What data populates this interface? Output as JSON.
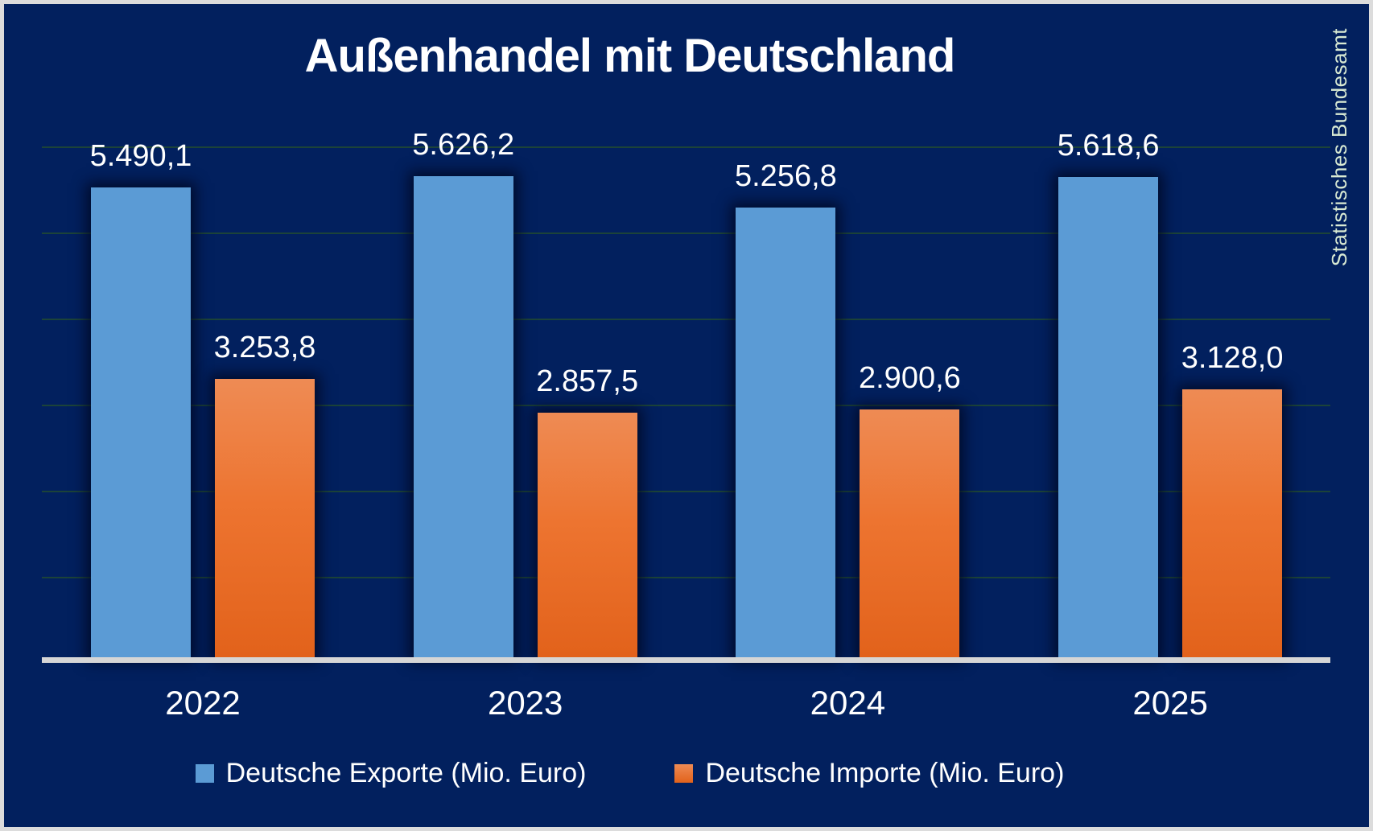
{
  "chart_data": {
    "type": "bar",
    "title": "Außenhandel mit Deutschland",
    "source": "Statistisches Bundesamt",
    "categories": [
      "2022",
      "2023",
      "2024",
      "2025"
    ],
    "series": [
      {
        "name": "Deutsche Exporte (Mio. Euro)",
        "values": [
          5490.1,
          5626.2,
          5256.8,
          5618.6
        ],
        "value_labels": [
          "5.490,1",
          "5.626,2",
          "5.256,8",
          "5.618,6"
        ],
        "color": "#5B9BD5"
      },
      {
        "name": "Deutsche Importe (Mio. Euro)",
        "values": [
          3253.8,
          2857.5,
          2900.6,
          3128.0
        ],
        "value_labels": [
          "3.253,8",
          "2.857,5",
          "2.900,6",
          "3.128,0"
        ],
        "color": "#E9732C",
        "gradient_top": "#EE8B54",
        "gradient_bottom": "#E2621B"
      }
    ],
    "xlabel": "",
    "ylabel": "",
    "ylim": [
      0,
      6400
    ],
    "gridline_interval": 1000,
    "grid": "horizontal",
    "legend_position": "bottom",
    "number_format": "German (thousands '.', decimal ',')"
  },
  "colors": {
    "background": "#02205E",
    "frame": "#DCDCDC",
    "gridline": "#1C4339",
    "axis_line": "#D6D6D6",
    "text": "#FFFFFF",
    "source_text": "#D9EAD3",
    "export_bar": "#5B9BD5",
    "import_bar": "#E9732C"
  }
}
